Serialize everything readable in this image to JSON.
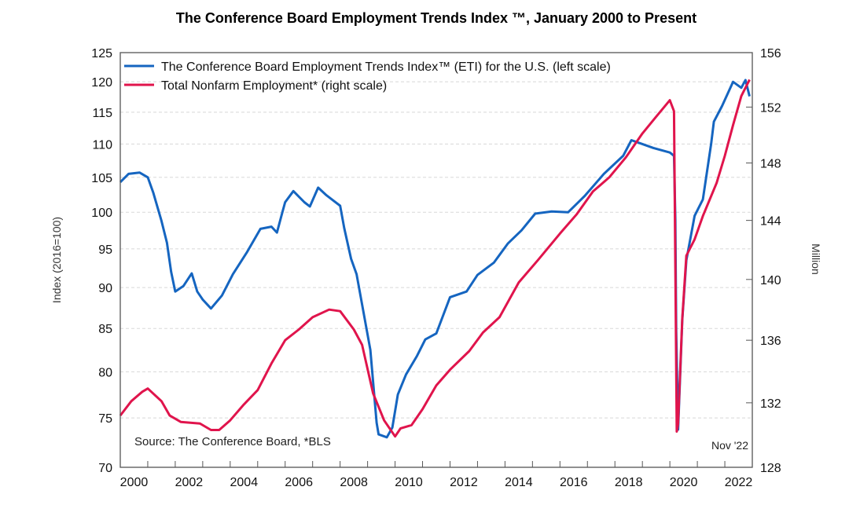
{
  "chart_data": {
    "type": "line",
    "title": "The Conference Board Employment Trends Index ™, January 2000 to Present",
    "ylabel": "Index (2016=100)",
    "y2label": "Million",
    "source": "Source: The Conference Board, *BLS",
    "date_note": "Nov '22",
    "x_range": [
      2000,
      2023
    ],
    "x_ticks": [
      "2000",
      "2002",
      "2004",
      "2006",
      "2008",
      "2010",
      "2012",
      "2014",
      "2016",
      "2018",
      "2020",
      "2022"
    ],
    "ylim": [
      70,
      125
    ],
    "y_scale": "log",
    "y_ticks": [
      70,
      75,
      80,
      85,
      90,
      95,
      100,
      105,
      110,
      115,
      120,
      125
    ],
    "y2lim": [
      128,
      156
    ],
    "y2_scale": "log",
    "y2_ticks": [
      128,
      132,
      136,
      140,
      144,
      148,
      152,
      156
    ],
    "grid": "horizontal dashed",
    "legend_position": "top-left",
    "series": [
      {
        "name": "The Conference Board Employment Trends Index™ (ETI) for the U.S. (left scale)",
        "axis": "left",
        "color": "#1565c0",
        "points": [
          [
            2000.0,
            104.3
          ],
          [
            2000.3,
            105.5
          ],
          [
            2000.7,
            105.7
          ],
          [
            2001.0,
            105.0
          ],
          [
            2001.2,
            102.8
          ],
          [
            2001.5,
            98.8
          ],
          [
            2001.7,
            95.8
          ],
          [
            2001.85,
            92
          ],
          [
            2002.0,
            89.5
          ],
          [
            2002.3,
            90.2
          ],
          [
            2002.6,
            91.8
          ],
          [
            2002.8,
            89.5
          ],
          [
            2003.0,
            88.5
          ],
          [
            2003.3,
            87.4
          ],
          [
            2003.7,
            89
          ],
          [
            2004.1,
            91.7
          ],
          [
            2004.6,
            94.5
          ],
          [
            2005.1,
            97.7
          ],
          [
            2005.5,
            98
          ],
          [
            2005.7,
            97.2
          ],
          [
            2005.9,
            100
          ],
          [
            2006.0,
            101.4
          ],
          [
            2006.3,
            103
          ],
          [
            2006.7,
            101.4
          ],
          [
            2006.9,
            100.8
          ],
          [
            2007.2,
            103.5
          ],
          [
            2007.5,
            102.4
          ],
          [
            2008.0,
            100.9
          ],
          [
            2008.15,
            97.8
          ],
          [
            2008.4,
            93.7
          ],
          [
            2008.6,
            91.7
          ],
          [
            2009.1,
            82.5
          ],
          [
            2009.33,
            74.5
          ],
          [
            2009.4,
            73.3
          ],
          [
            2009.7,
            73.0
          ],
          [
            2009.9,
            74.0
          ],
          [
            2010.1,
            77.5
          ],
          [
            2010.4,
            79.7
          ],
          [
            2010.8,
            81.8
          ],
          [
            2011.1,
            83.7
          ],
          [
            2011.5,
            84.4
          ],
          [
            2012.0,
            88.8
          ],
          [
            2012.6,
            89.5
          ],
          [
            2013.0,
            91.6
          ],
          [
            2013.6,
            93.2
          ],
          [
            2014.1,
            95.7
          ],
          [
            2014.6,
            97.5
          ],
          [
            2015.1,
            99.8
          ],
          [
            2015.7,
            100.1
          ],
          [
            2016.3,
            100.0
          ],
          [
            2016.9,
            102.3
          ],
          [
            2017.6,
            105.5
          ],
          [
            2018.3,
            108.2
          ],
          [
            2018.6,
            110.6
          ],
          [
            2019.0,
            110.0
          ],
          [
            2019.4,
            109.4
          ],
          [
            2020.0,
            108.7
          ],
          [
            2020.15,
            108.2
          ],
          [
            2020.2,
            99
          ],
          [
            2020.23,
            84.7
          ],
          [
            2020.3,
            73.8
          ],
          [
            2020.45,
            86
          ],
          [
            2020.6,
            93.5
          ],
          [
            2020.9,
            99.5
          ],
          [
            2021.2,
            101.8
          ],
          [
            2021.5,
            110
          ],
          [
            2021.6,
            113.5
          ],
          [
            2021.9,
            116
          ],
          [
            2022.3,
            120
          ],
          [
            2022.6,
            119
          ],
          [
            2022.75,
            120.3
          ],
          [
            2022.9,
            117.6
          ]
        ]
      },
      {
        "name": "Total Nonfarm Employment* (right scale)",
        "axis": "right",
        "color": "#e0144c",
        "points": [
          [
            2000.0,
            131.2
          ],
          [
            2000.4,
            132.1
          ],
          [
            2000.8,
            132.7
          ],
          [
            2001.0,
            132.9
          ],
          [
            2001.5,
            132.1
          ],
          [
            2001.8,
            131.2
          ],
          [
            2002.2,
            130.8
          ],
          [
            2002.9,
            130.7
          ],
          [
            2003.3,
            130.3
          ],
          [
            2003.6,
            130.3
          ],
          [
            2004.0,
            130.9
          ],
          [
            2004.5,
            131.9
          ],
          [
            2005.0,
            132.8
          ],
          [
            2005.5,
            134.5
          ],
          [
            2006.0,
            136.0
          ],
          [
            2006.5,
            136.7
          ],
          [
            2007.0,
            137.5
          ],
          [
            2007.6,
            138.0
          ],
          [
            2008.0,
            137.9
          ],
          [
            2008.5,
            136.7
          ],
          [
            2008.8,
            135.7
          ],
          [
            2009.2,
            132.6
          ],
          [
            2009.6,
            130.9
          ],
          [
            2010.0,
            129.9
          ],
          [
            2010.2,
            130.4
          ],
          [
            2010.6,
            130.6
          ],
          [
            2011.0,
            131.6
          ],
          [
            2011.5,
            133.1
          ],
          [
            2012.0,
            134.1
          ],
          [
            2012.7,
            135.3
          ],
          [
            2013.2,
            136.5
          ],
          [
            2013.8,
            137.5
          ],
          [
            2014.5,
            139.8
          ],
          [
            2015.2,
            141.3
          ],
          [
            2016.0,
            143.1
          ],
          [
            2016.6,
            144.4
          ],
          [
            2017.2,
            146.0
          ],
          [
            2017.8,
            147.0
          ],
          [
            2018.4,
            148.4
          ],
          [
            2019.0,
            150.1
          ],
          [
            2019.5,
            151.3
          ],
          [
            2020.0,
            152.5
          ],
          [
            2020.15,
            151.7
          ],
          [
            2020.25,
            130.2
          ],
          [
            2020.3,
            130.7
          ],
          [
            2020.45,
            137.4
          ],
          [
            2020.6,
            141.6
          ],
          [
            2020.9,
            142.7
          ],
          [
            2021.2,
            144.3
          ],
          [
            2021.7,
            146.6
          ],
          [
            2022.0,
            148.5
          ],
          [
            2022.3,
            150.7
          ],
          [
            2022.6,
            152.8
          ],
          [
            2022.9,
            154.0
          ]
        ]
      }
    ]
  }
}
